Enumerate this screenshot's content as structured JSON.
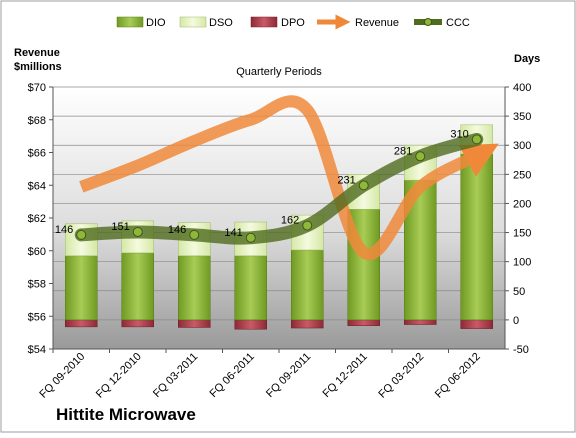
{
  "company": "Hittite Microwave",
  "colors": {
    "dio": "#8fb83a",
    "dso": "#e6f3c2",
    "dpo": "#b23a48",
    "revenue": "#f0883a",
    "ccc": "#4f6b1e"
  },
  "chart_data": {
    "type": "bar",
    "title": "Quarterly Periods",
    "y_left_label_line1": "Revenue",
    "y_left_label_line2": "$millions",
    "y_right_label": "Days",
    "categories": [
      "FQ 09-2010",
      "FQ 12-2010",
      "FQ 03-2011",
      "FQ 06-2011",
      "FQ 09-2011",
      "FQ 12-2011",
      "FQ 03-2012",
      "FQ 06-2012"
    ],
    "y_left_ticks": [
      "$54",
      "$56",
      "$58",
      "$60",
      "$62",
      "$64",
      "$66",
      "$68",
      "$70"
    ],
    "y_right_ticks": [
      "-50",
      "0",
      "50",
      "100",
      "150",
      "200",
      "250",
      "300",
      "350",
      "400"
    ],
    "ylim_left": [
      54,
      70
    ],
    "ylim_right": [
      -50,
      400
    ],
    "legend_position": "top",
    "series": [
      {
        "name": "DIO",
        "axis": "right",
        "values": [
          110,
          115,
          110,
          110,
          120,
          190,
          240,
          285
        ]
      },
      {
        "name": "DSO",
        "axis": "right",
        "values": [
          55,
          55,
          57,
          58,
          60,
          60,
          60,
          50
        ]
      },
      {
        "name": "DPO",
        "axis": "right",
        "values": [
          -12,
          -12,
          -13,
          -16,
          -14,
          -10,
          -8,
          -15
        ]
      },
      {
        "name": "Revenue",
        "axis": "left",
        "values": [
          63.9,
          65.2,
          66.7,
          68.0,
          68.6,
          59.9,
          63.9,
          65.8
        ]
      },
      {
        "name": "CCC",
        "axis": "right",
        "values": [
          146,
          151,
          146,
          141,
          162,
          231,
          281,
          310
        ]
      }
    ],
    "ccc_labels": [
      "146",
      "151",
      "146",
      "141",
      "162",
      "231",
      "281",
      "310"
    ]
  }
}
